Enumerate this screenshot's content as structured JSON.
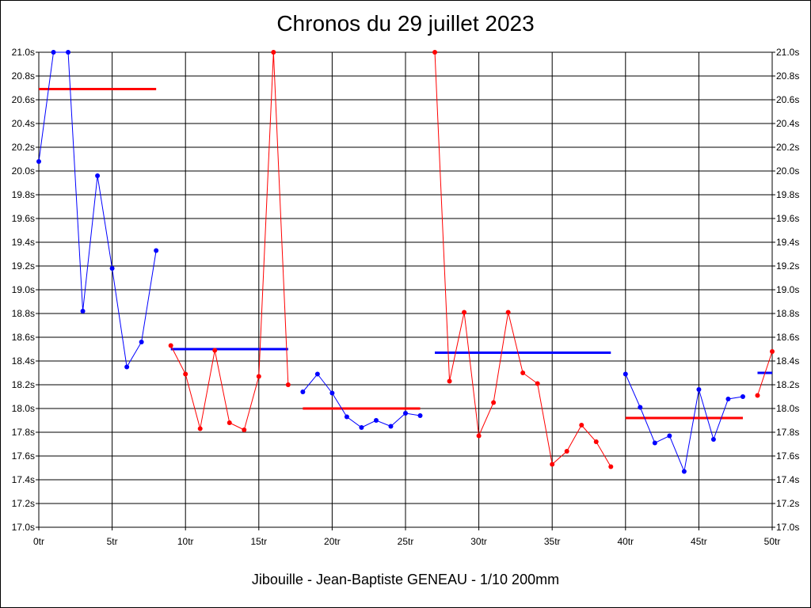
{
  "chart_data": {
    "type": "line",
    "title": "Chronos du 29 juillet 2023",
    "subtitle": "Jibouille - Jean-Baptiste GENEAU - 1/10 200mm",
    "xlim": [
      0,
      50
    ],
    "ylim": [
      17.0,
      21.0
    ],
    "x_ticks": [
      0,
      5,
      10,
      15,
      20,
      25,
      30,
      35,
      40,
      45,
      50
    ],
    "x_tick_labels": [
      "0tr",
      "5tr",
      "10tr",
      "15tr",
      "20tr",
      "25tr",
      "30tr",
      "35tr",
      "40tr",
      "45tr",
      "50tr"
    ],
    "y_ticks": [
      17.0,
      17.2,
      17.4,
      17.6,
      17.8,
      18.0,
      18.2,
      18.4,
      18.6,
      18.8,
      19.0,
      19.2,
      19.4,
      19.6,
      19.8,
      20.0,
      20.2,
      20.4,
      20.6,
      20.8,
      21.0
    ],
    "y_tick_labels": [
      "17.0s",
      "17.2s",
      "17.4s",
      "17.6s",
      "17.8s",
      "18.0s",
      "18.2s",
      "18.4s",
      "18.6s",
      "18.8s",
      "19.0s",
      "19.2s",
      "19.4s",
      "19.6s",
      "19.8s",
      "20.0s",
      "20.2s",
      "20.4s",
      "20.6s",
      "20.8s",
      "21.0s"
    ],
    "grid": true,
    "series": [
      {
        "color": "#0000ff",
        "x": [
          0,
          1,
          2,
          3,
          4,
          5,
          6,
          7,
          8
        ],
        "y": [
          20.08,
          21.0,
          21.0,
          18.82,
          19.96,
          19.18,
          18.35,
          18.56,
          19.33
        ]
      },
      {
        "color": "#ff0000",
        "x": [
          9,
          10,
          11,
          12,
          13,
          14,
          15,
          16,
          17
        ],
        "y": [
          18.53,
          18.29,
          17.83,
          18.49,
          17.88,
          17.82,
          18.27,
          21.0,
          18.2
        ]
      },
      {
        "color": "#0000ff",
        "x": [
          18,
          19,
          20,
          21,
          22,
          23,
          24,
          25,
          26
        ],
        "y": [
          18.14,
          18.29,
          18.13,
          17.93,
          17.84,
          17.9,
          17.85,
          17.96,
          17.94
        ]
      },
      {
        "color": "#ff0000",
        "x": [
          27,
          28,
          29,
          30,
          31,
          32,
          33,
          34,
          35,
          36,
          37,
          38,
          39
        ],
        "y": [
          21.0,
          18.23,
          18.81,
          17.77,
          18.05,
          18.81,
          18.3,
          18.21,
          17.53,
          17.64,
          17.86,
          17.72,
          17.51
        ]
      },
      {
        "color": "#0000ff",
        "x": [
          40,
          41,
          42,
          43,
          44,
          45,
          46,
          47,
          48
        ],
        "y": [
          18.29,
          18.01,
          17.71,
          17.77,
          17.47,
          18.16,
          17.74,
          18.08,
          18.1
        ]
      },
      {
        "color": "#ff0000",
        "x": [
          49,
          50
        ],
        "y": [
          18.11,
          18.48
        ]
      }
    ],
    "averages": [
      {
        "color": "#ff0000",
        "x_start": 0,
        "x_end": 8,
        "y": 20.69
      },
      {
        "color": "#0000ff",
        "x_start": 9,
        "x_end": 17,
        "y": 18.5
      },
      {
        "color": "#ff0000",
        "x_start": 18,
        "x_end": 26,
        "y": 18.0
      },
      {
        "color": "#0000ff",
        "x_start": 27,
        "x_end": 39,
        "y": 18.47
      },
      {
        "color": "#ff0000",
        "x_start": 40,
        "x_end": 48,
        "y": 17.92
      },
      {
        "color": "#0000ff",
        "x_start": 49,
        "x_end": 50,
        "y": 18.3
      }
    ]
  }
}
